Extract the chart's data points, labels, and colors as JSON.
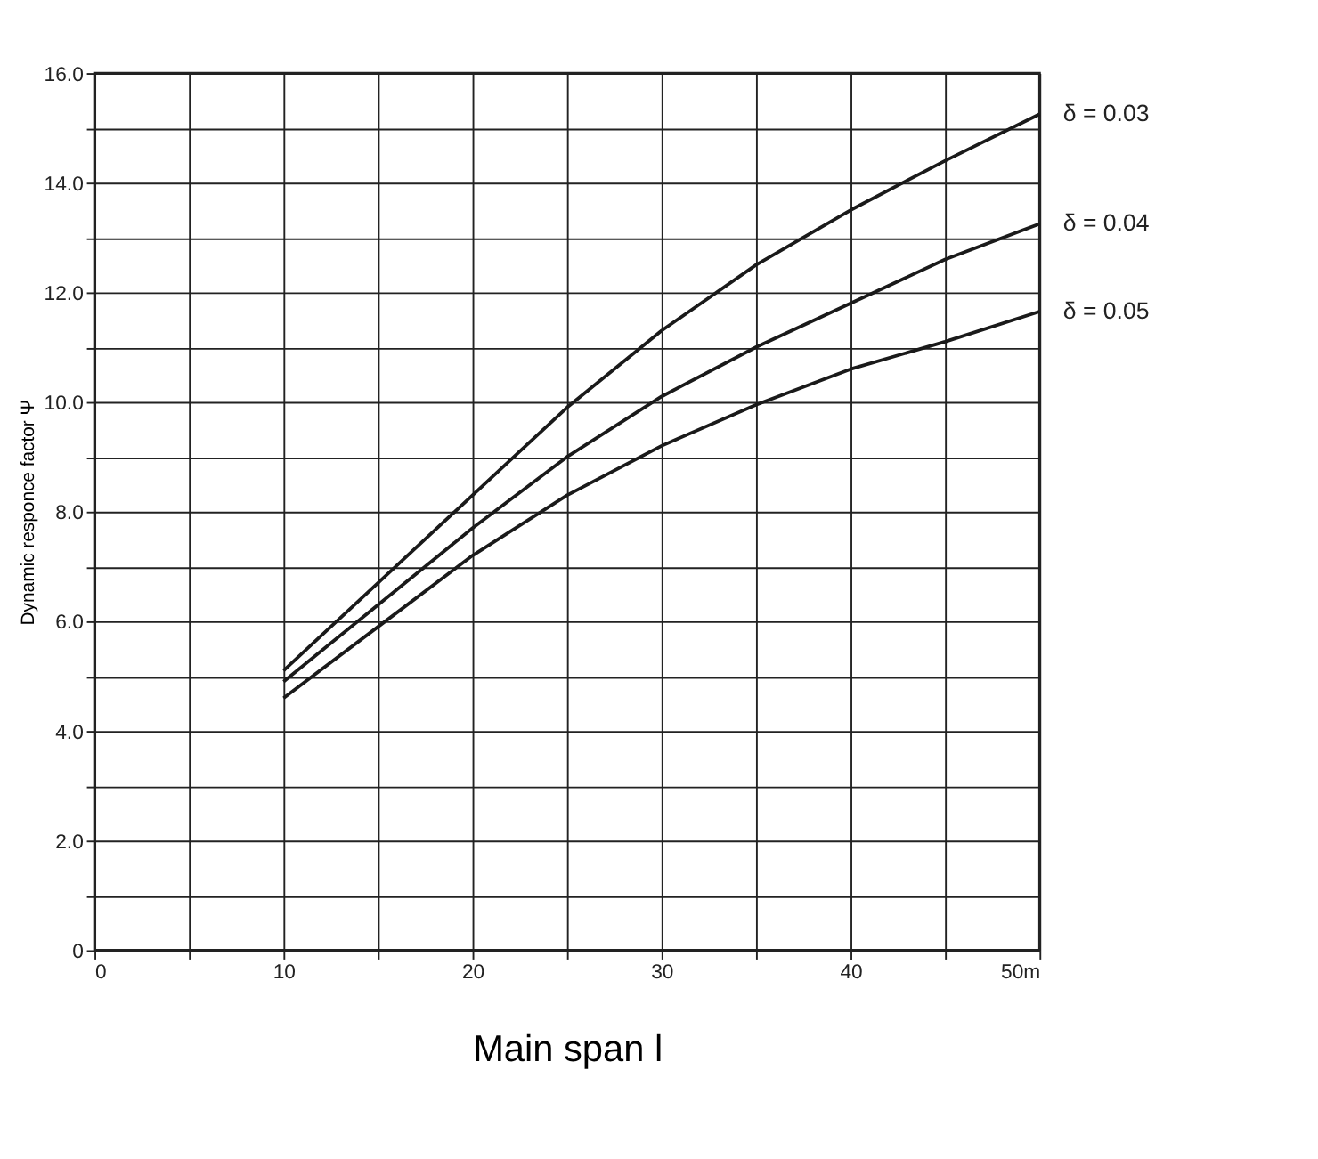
{
  "chart_data": {
    "type": "line",
    "xlabel": "Main span l",
    "ylabel": "Dynamic responce factor Ψ",
    "x": [
      10,
      15,
      20,
      25,
      30,
      35,
      40,
      45,
      50
    ],
    "series": [
      {
        "name": "δ = 0.03",
        "color": "#1a1a1a",
        "values": [
          5.1,
          6.7,
          8.3,
          9.9,
          11.3,
          12.5,
          13.5,
          14.4,
          15.25
        ]
      },
      {
        "name": "δ = 0.04",
        "color": "#1a1a1a",
        "values": [
          4.9,
          6.3,
          7.7,
          9.0,
          10.1,
          11.0,
          11.8,
          12.6,
          13.25
        ]
      },
      {
        "name": "δ = 0.05",
        "color": "#1a1a1a",
        "values": [
          4.6,
          5.9,
          7.2,
          8.3,
          9.2,
          9.95,
          10.6,
          11.1,
          11.65
        ]
      }
    ],
    "xlim": [
      0,
      50
    ],
    "xticks": [
      0,
      {
        "value": 5,
        "label": null
      },
      10,
      {
        "value": 15,
        "label": null
      },
      20,
      {
        "value": 25,
        "label": null
      },
      30,
      {
        "value": 35,
        "label": null
      },
      40,
      {
        "value": 45,
        "label": null
      },
      {
        "value": 50,
        "label": "50m"
      }
    ],
    "ylim": [
      0,
      16
    ],
    "yticks": [
      0,
      {
        "value": 1,
        "label": null
      },
      {
        "value": 2,
        "label": "2.0"
      },
      {
        "value": 3,
        "label": null
      },
      {
        "value": 4,
        "label": "4.0"
      },
      {
        "value": 5,
        "label": null
      },
      {
        "value": 6,
        "label": "6.0"
      },
      {
        "value": 7,
        "label": null
      },
      {
        "value": 8,
        "label": "8.0"
      },
      {
        "value": 9,
        "label": null
      },
      {
        "value": 10,
        "label": "10.0"
      },
      {
        "value": 11,
        "label": null
      },
      {
        "value": 12,
        "label": "12.0"
      },
      {
        "value": 13,
        "label": null
      },
      {
        "value": 14,
        "label": "14.0"
      },
      {
        "value": 15,
        "label": null
      },
      {
        "value": 16,
        "label": "16.0"
      }
    ],
    "grid": true,
    "legend": false,
    "marker": "none",
    "line_style": "solid"
  }
}
